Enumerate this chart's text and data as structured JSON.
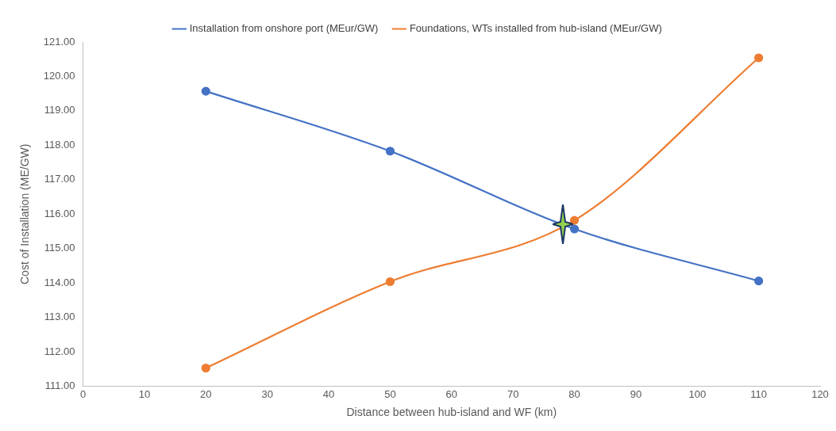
{
  "chart_data": {
    "type": "line",
    "xlabel": "Distance between hub-island and WF (km)",
    "ylabel": "Cost of Installation (ME/GW)",
    "x": [
      20,
      50,
      80,
      110
    ],
    "series": [
      {
        "name": "Installation from onshore port (MEur/GW)",
        "color": "#4472c4",
        "values": [
          119.57,
          117.83,
          115.57,
          114.06
        ]
      },
      {
        "name": "Foundations, WTs installed from hub-island (MEur/GW)",
        "color": "#ed7d31",
        "values": [
          111.53,
          114.04,
          115.82,
          120.54
        ]
      }
    ],
    "xlim": [
      0,
      120
    ],
    "xticks": [
      0,
      10,
      20,
      30,
      40,
      50,
      60,
      70,
      80,
      90,
      100,
      110,
      120
    ],
    "ylim": [
      111,
      121
    ],
    "yticks": [
      {
        "value": 111,
        "label": "111.00"
      },
      {
        "value": 112,
        "label": "112.00"
      },
      {
        "value": 113,
        "label": "113.00"
      },
      {
        "value": 114,
        "label": "114.00"
      },
      {
        "value": 115,
        "label": "115.00"
      },
      {
        "value": 116,
        "label": "116.00"
      },
      {
        "value": 117,
        "label": "117.00"
      },
      {
        "value": 118,
        "label": "118.00"
      },
      {
        "value": 119,
        "label": "119.00"
      },
      {
        "value": 120,
        "label": "120.00"
      },
      {
        "value": 121,
        "label": "121.00"
      }
    ],
    "grid": false,
    "legend": "top",
    "marker": "circle",
    "line_style": "solid"
  }
}
